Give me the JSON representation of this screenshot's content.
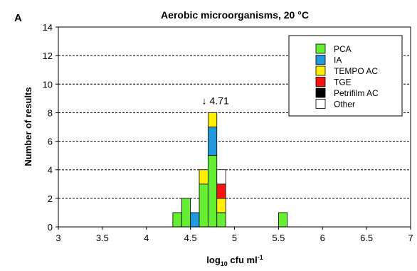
{
  "panel_label": "A",
  "chart_data": {
    "type": "bar",
    "subtype": "stacked-histogram",
    "title": "Aerobic microorganisms, 20 °C",
    "xlabel": {
      "base": "log",
      "subscript": "10",
      "rest": " cfu ml",
      "superscript": "-1"
    },
    "ylabel": "Number of results",
    "xlim": [
      3,
      7
    ],
    "ylim": [
      0,
      14
    ],
    "xticks": [
      3,
      3.5,
      4,
      4.5,
      5,
      5.5,
      6,
      6.5,
      7
    ],
    "xtick_labels": [
      "3",
      "3.5",
      "4",
      "4.5",
      "5",
      "5.5",
      "6",
      "6.5",
      "7"
    ],
    "yticks": [
      0,
      2,
      4,
      6,
      8,
      10,
      12,
      14
    ],
    "ytick_labels": [
      "0",
      "2",
      "4",
      "6",
      "8",
      "10",
      "12",
      "14"
    ],
    "grid": {
      "y": true,
      "style": "dashed"
    },
    "legend_position": "top-right",
    "bin_width": 0.1,
    "bins": [
      4.35,
      4.45,
      4.55,
      4.65,
      4.75,
      4.85,
      5.55
    ],
    "series": [
      {
        "name": "PCA",
        "color": "#66ee33",
        "values": [
          1,
          2,
          0,
          3,
          5,
          1,
          1
        ]
      },
      {
        "name": "IA",
        "color": "#2299dd",
        "values": [
          0,
          0,
          1,
          0,
          2,
          0,
          0
        ]
      },
      {
        "name": "TEMPO AC",
        "color": "#ffee00",
        "values": [
          0,
          0,
          0,
          1,
          1,
          1,
          0
        ]
      },
      {
        "name": "TGE",
        "color": "#ff1111",
        "values": [
          0,
          0,
          0,
          0,
          0,
          1,
          0
        ]
      },
      {
        "name": "Petrifilm AC",
        "color": "#000000",
        "values": [
          0,
          0,
          0,
          0,
          0,
          0,
          0
        ]
      },
      {
        "name": "Other",
        "color": "#ffffff",
        "values": [
          0,
          0,
          0,
          0,
          0,
          1,
          0
        ]
      }
    ],
    "annotation": {
      "text": "↓ 4.71",
      "x": 4.71,
      "y": 8
    }
  }
}
